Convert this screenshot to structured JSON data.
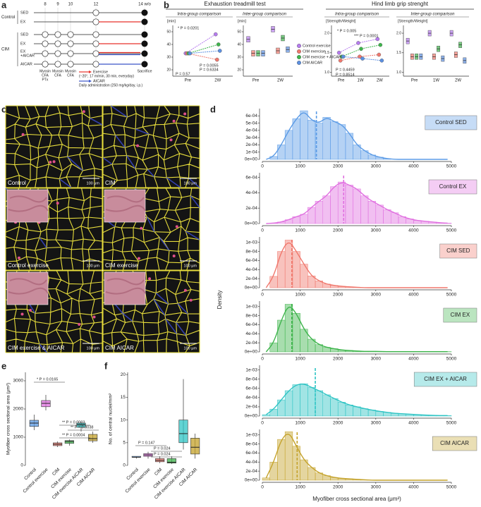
{
  "panel_letters": [
    "a",
    "b",
    "c",
    "d",
    "e",
    "f"
  ],
  "schematic": {
    "weeks": [
      "8",
      "9",
      "10",
      "12",
      "14 w/o"
    ],
    "groups": [
      {
        "name": "Control",
        "rows": [
          {
            "label": [
              "SED"
            ],
            "exercise": false,
            "aicar": false
          },
          {
            "label": [
              "EX"
            ],
            "exercise": true,
            "aicar": false
          }
        ]
      },
      {
        "name": "CIM",
        "rows": [
          {
            "label": [
              "SED"
            ],
            "exercise": false,
            "aicar": false
          },
          {
            "label": [
              "EX"
            ],
            "exercise": true,
            "aicar": false
          },
          {
            "label": [
              "EX",
              "+AICAR"
            ],
            "exercise": true,
            "aicar": true
          },
          {
            "label": [
              "AICAR"
            ],
            "exercise": false,
            "aicar": true
          }
        ]
      }
    ],
    "injections": [
      [
        "Myosin",
        "CFA",
        "PTx"
      ],
      [
        "Myosin",
        "CFA"
      ],
      [
        "Myosin",
        "CFA"
      ]
    ],
    "end": "Sacrifice",
    "exercise_color": "#e8322a",
    "aicar_color": "#3a55c8",
    "legend": [
      {
        "name": "Exercise",
        "note": "(−20°, 17 m/min, 30 min, everyday)"
      },
      {
        "name": "AICAR",
        "note": "Daily administration (250 mg/kg/day, i.p.)"
      }
    ]
  },
  "micrographs": [
    {
      "label": "Control",
      "scale": "100 μm",
      "inset": false
    },
    {
      "label": "CIM",
      "scale": "100 μm",
      "inset": false
    },
    {
      "label": "Control exercise",
      "scale": "100 μm",
      "inset": true
    },
    {
      "label": "CIM exercise",
      "scale": "100 μm",
      "inset": true
    },
    {
      "label": "CIM exercise & AICAR",
      "scale": "100 μm",
      "inset": true
    },
    {
      "label": "CIM AICAR",
      "scale": "100 μm",
      "inset": true
    }
  ],
  "b_legend": [
    {
      "name": "Control exercise",
      "color": "#b57bee"
    },
    {
      "name": "CIM exercise",
      "color": "#f0776c"
    },
    {
      "name": "CIM exercise + AICAR",
      "color": "#3db44b"
    },
    {
      "name": "CIM AICAR",
      "color": "#5b8fe0"
    }
  ],
  "d_axes": {
    "ylabel": "Density",
    "xlabel": "Myofiber cross sectional area (μm²)"
  },
  "chart_data": [
    {
      "type": "histogram",
      "label": "Control SED",
      "color": "#5b9be6",
      "bins": [
        0,
        200,
        400,
        600,
        800,
        1000,
        1200,
        1400,
        1600,
        1800,
        2000,
        2200,
        2400,
        2600,
        2800,
        3000,
        3200,
        3400,
        3600,
        3800,
        4000,
        4200,
        4400,
        4600,
        4800,
        5000
      ],
      "values": [
        0,
        4e-05,
        0.0002,
        0.0004,
        0.00056,
        0.00067,
        0.00054,
        0.0005,
        0.00058,
        0.00052,
        0.00048,
        0.00036,
        0.0002,
        0.00012,
        6e-05,
        3e-05,
        1e-05,
        0,
        0,
        0,
        0,
        0,
        0,
        0,
        0
      ],
      "mean": 1430,
      "xlim": [
        0,
        5000
      ],
      "xticks": [
        0,
        1000,
        2000,
        3000,
        4000,
        5000
      ],
      "ylim": [
        0,
        0.0007
      ],
      "yticks": [
        {
          "value": 0,
          "label": "0e+00"
        },
        {
          "value": 0.0001,
          "label": "1e-04"
        },
        {
          "value": 0.0002,
          "label": "2e-04"
        },
        {
          "value": 0.0003,
          "label": "3e-04"
        },
        {
          "value": 0.0004,
          "label": "4e-04"
        },
        {
          "value": 0.0005,
          "label": "5e-04"
        },
        {
          "value": 0.0006,
          "label": "6e-04"
        }
      ]
    },
    {
      "type": "histogram",
      "label": "Control EX",
      "color": "#e070e0",
      "bins": [
        0,
        200,
        400,
        600,
        800,
        1000,
        1200,
        1400,
        1600,
        1800,
        2000,
        2200,
        2400,
        2600,
        2800,
        3000,
        3200,
        3400,
        3600,
        3800,
        4000,
        4200,
        4400,
        4600,
        4800,
        5000
      ],
      "values": [
        0,
        5e-06,
        2e-05,
        5e-05,
        9e-05,
        0.00012,
        0.00021,
        0.00029,
        0.00036,
        0.00048,
        0.00054,
        0.0005,
        0.00045,
        0.00036,
        0.00029,
        0.00024,
        0.00018,
        0.00014,
        9e-05,
        6e-05,
        4e-05,
        3e-05,
        2e-05,
        1e-05,
        5e-06
      ],
      "mean": 2150,
      "xlim": [
        0,
        5000
      ],
      "xticks": [
        0,
        1000,
        2000,
        3000,
        4000,
        5000
      ],
      "ylim": [
        0,
        0.00066
      ],
      "yticks": [
        {
          "value": 0,
          "label": "0e+00"
        },
        {
          "value": 0.0002,
          "label": "2e-04"
        },
        {
          "value": 0.0004,
          "label": "4e-04"
        },
        {
          "value": 0.0006,
          "label": "6e-04"
        }
      ]
    },
    {
      "type": "histogram",
      "label": "CIM SED",
      "color": "#f0776c",
      "bins": [
        0,
        200,
        400,
        600,
        800,
        1000,
        1200,
        1400,
        1600,
        1800,
        2000,
        2200,
        2400,
        2600,
        2800,
        3000,
        3200,
        3400,
        3600,
        3800,
        4000,
        4200,
        4400,
        4600,
        4800,
        5000
      ],
      "values": [
        0,
        0.00025,
        0.0008,
        0.00105,
        0.0008,
        0.00052,
        0.00026,
        0.00015,
        8e-05,
        5e-05,
        3e-05,
        2e-05,
        1e-05,
        0,
        0,
        0,
        0,
        0,
        0,
        0,
        0,
        0,
        0,
        0,
        0
      ],
      "mean": 780,
      "xlim": [
        0,
        5000
      ],
      "xticks": [
        0,
        1000,
        2000,
        3000,
        4000,
        5000
      ],
      "ylim": [
        0,
        0.00112
      ],
      "yticks": [
        {
          "value": 0,
          "label": "0e+00"
        },
        {
          "value": 0.0002,
          "label": "2e-04"
        },
        {
          "value": 0.0004,
          "label": "4e-04"
        },
        {
          "value": 0.0006,
          "label": "6e-04"
        },
        {
          "value": 0.0008,
          "label": "8e-04"
        },
        {
          "value": 0.001,
          "label": "1e-03"
        }
      ]
    },
    {
      "type": "histogram",
      "label": "CIM EX",
      "color": "#3db44b",
      "bins": [
        0,
        200,
        400,
        600,
        800,
        1000,
        1200,
        1400,
        1600,
        1800,
        2000,
        2200,
        2400,
        2600,
        2800,
        3000,
        3200,
        3400,
        3600,
        3800,
        4000,
        4200,
        4400,
        4600,
        4800,
        5000
      ],
      "values": [
        0,
        0.0002,
        0.0007,
        0.00105,
        0.00085,
        0.0005,
        0.00028,
        0.00016,
        0.0001,
        7e-05,
        4e-05,
        3e-05,
        2e-05,
        1e-05,
        1e-05,
        1e-05,
        5e-06,
        5e-06,
        5e-06,
        5e-06,
        5e-06,
        5e-06,
        5e-06,
        5e-06,
        5e-06
      ],
      "mean": 780,
      "xlim": [
        0,
        5000
      ],
      "xticks": [
        0,
        1000,
        2000,
        3000,
        4000,
        5000
      ],
      "ylim": [
        0,
        0.00112
      ],
      "yticks": [
        {
          "value": 0,
          "label": "0e+00"
        },
        {
          "value": 0.0002,
          "label": "2e-04"
        },
        {
          "value": 0.0004,
          "label": "4e-04"
        },
        {
          "value": 0.0006,
          "label": "6e-04"
        },
        {
          "value": 0.0008,
          "label": "8e-04"
        },
        {
          "value": 0.001,
          "label": "1e-03"
        }
      ]
    },
    {
      "type": "histogram",
      "label": "CIM EX + AICAR",
      "color": "#2ec4c4",
      "bins": [
        0,
        200,
        400,
        600,
        800,
        1000,
        1200,
        1400,
        1600,
        1800,
        2000,
        2200,
        2400,
        2600,
        2800,
        3000,
        3200,
        3400,
        3600,
        3800,
        4000,
        4200,
        4400,
        4600,
        4800,
        5000
      ],
      "values": [
        3e-05,
        0.00015,
        0.00035,
        0.00055,
        0.00068,
        0.0007,
        0.00062,
        0.00055,
        0.00046,
        0.00038,
        0.0003,
        0.00024,
        0.0002,
        0.00016,
        0.00013,
        0.0001,
        8e-05,
        6e-05,
        5e-05,
        4e-05,
        3e-05,
        2e-05,
        1.5e-05,
        1e-05,
        1e-05
      ],
      "mean": 1400,
      "xlim": [
        0,
        5000
      ],
      "xticks": [
        0,
        1000,
        2000,
        3000,
        4000,
        5000
      ],
      "ylim": [
        0,
        0.0011
      ],
      "yticks": [
        {
          "value": 0,
          "label": "0e+00"
        },
        {
          "value": 0.0002,
          "label": "2e-04"
        },
        {
          "value": 0.0004,
          "label": "4e-04"
        },
        {
          "value": 0.0006,
          "label": "6e-04"
        },
        {
          "value": 0.0008,
          "label": "8e-04"
        },
        {
          "value": 0.001,
          "label": "1e-03"
        }
      ]
    },
    {
      "type": "histogram",
      "label": "CIM AICAR",
      "color": "#c4a22a",
      "bins": [
        0,
        200,
        400,
        600,
        800,
        1000,
        1200,
        1400,
        1600,
        1800,
        2000,
        2200,
        2400,
        2600,
        2800,
        3000,
        3200,
        3400,
        3600,
        3800,
        4000,
        4200,
        4400,
        4600,
        4800,
        5000
      ],
      "values": [
        5e-05,
        0.0004,
        0.0009,
        0.00107,
        0.00075,
        0.00045,
        0.00028,
        0.00016,
        0.0001,
        6e-05,
        4e-05,
        3e-05,
        2e-05,
        1e-05,
        0,
        0,
        0,
        0,
        0,
        0,
        0,
        0,
        0,
        0,
        0
      ],
      "mean": 920,
      "xlim": [
        0,
        5000
      ],
      "xticks": [
        0,
        1000,
        2000,
        3000,
        4000,
        5000
      ],
      "ylim": [
        0,
        0.00112
      ],
      "yticks": [
        {
          "value": 0,
          "label": "0e+00"
        },
        {
          "value": 0.0002,
          "label": "2e-04"
        },
        {
          "value": 0.0004,
          "label": "4e-04"
        },
        {
          "value": 0.0006,
          "label": "6e-04"
        },
        {
          "value": 0.0008,
          "label": "8e-04"
        },
        {
          "value": 0.001,
          "label": "1e-03"
        }
      ]
    },
    {
      "type": "box",
      "ylabel": "Myofiber cross sectional area (μm²)",
      "categories": [
        "Control",
        "Control exercise",
        "CIM",
        "CIM exercise",
        "CIM exercise AICAR",
        "CIM AICAR"
      ],
      "colors": [
        "#5b9be6",
        "#e070e0",
        "#f0776c",
        "#3db44b",
        "#2ec4c4",
        "#c4a22a"
      ],
      "boxes": [
        {
          "min": 1250,
          "q1": 1380,
          "median": 1500,
          "q3": 1600,
          "max": 1800
        },
        {
          "min": 1950,
          "q1": 2080,
          "median": 2200,
          "q3": 2300,
          "max": 2500
        },
        {
          "min": 650,
          "q1": 700,
          "median": 750,
          "q3": 800,
          "max": 850
        },
        {
          "min": 700,
          "q1": 780,
          "median": 850,
          "q3": 880,
          "max": 920
        },
        {
          "min": 1200,
          "q1": 1350,
          "median": 1450,
          "q3": 1500,
          "max": 1550
        },
        {
          "min": 800,
          "q1": 870,
          "median": 950,
          "q3": 1100,
          "max": 1200
        }
      ],
      "ylim": [
        0,
        3300
      ],
      "yticks": [
        0,
        1000,
        2000,
        3000
      ],
      "annotations": [
        "* P = 0.0165",
        "** P = 0.0003",
        "** P = 0.0038",
        "** P = 0.0004"
      ]
    },
    {
      "type": "box",
      "ylabel": "No. of central nuclei/mm²",
      "categories": [
        "Control",
        "Control exercise",
        "CIM",
        "CIM exercise",
        "CIM exercise AICAR",
        "CIM AICAR"
      ],
      "colors": [
        "#5b9be6",
        "#e070e0",
        "#f0776c",
        "#3db44b",
        "#2ec4c4",
        "#c4a22a"
      ],
      "boxes": [
        {
          "min": 1.5,
          "q1": 1.8,
          "median": 1.8,
          "q3": 2.0,
          "max": 2.0
        },
        {
          "min": 1.5,
          "q1": 2.0,
          "median": 2.3,
          "q3": 2.6,
          "max": 3.0
        },
        {
          "min": 0.5,
          "q1": 0.8,
          "median": 1.1,
          "q3": 1.5,
          "max": 2.0
        },
        {
          "min": 0.3,
          "q1": 0.5,
          "median": 0.7,
          "q3": 1.5,
          "max": 2.0
        },
        {
          "min": 3.5,
          "q1": 5.0,
          "median": 7.0,
          "q3": 10.0,
          "max": 19.0
        },
        {
          "min": 1.5,
          "q1": 2.5,
          "median": 4.0,
          "q3": 6.0,
          "max": 7.0
        }
      ],
      "ylim": [
        0,
        20.5
      ],
      "yticks": [
        0,
        5,
        10,
        15,
        20
      ],
      "annotations": [
        "P = 0.147",
        "P = 0.024",
        "P = 0.024"
      ]
    },
    {
      "type": "line",
      "title": "Exhaustion treadmill test",
      "subtitle": "Intra-group comparison",
      "ylabel": "[min]",
      "categories": [
        "Pre",
        "2W"
      ],
      "series": [
        {
          "values": [
            33,
            48
          ]
        },
        {
          "values": [
            33,
            28
          ]
        },
        {
          "values": [
            33,
            40
          ]
        },
        {
          "values": [
            33,
            35
          ]
        }
      ],
      "ylim": [
        15,
        55
      ],
      "yticks": [
        20,
        30,
        40,
        50
      ],
      "annotations": [
        "* P = 0.0201",
        "P = 0.0055",
        "P = 0.6334",
        "P = 0.57"
      ]
    },
    {
      "type": "groupbox",
      "subtitle": "Inter-group comparison",
      "ylabel": "[min]",
      "categories": [
        "Pre",
        "2W"
      ],
      "series": [
        {
          "values": [
            44,
            52
          ]
        },
        {
          "values": [
            33,
            35
          ]
        },
        {
          "values": [
            33,
            45
          ]
        },
        {
          "values": [
            33,
            36
          ]
        }
      ],
      "ylim": [
        15,
        55
      ],
      "yticks": [
        20,
        30,
        40,
        50
      ],
      "annotations": []
    },
    {
      "type": "line",
      "title": "Hind limb grip strenght",
      "subtitle": "Intra-group comparison",
      "ylabel": "[Strength/Weight]",
      "categories": [
        "Pre",
        "1W",
        "2W"
      ],
      "series": [
        {
          "values": [
            1.5,
            1.75,
            1.85
          ]
        },
        {
          "values": [
            1.3,
            1.4,
            1.45
          ]
        },
        {
          "values": [
            1.4,
            1.6,
            1.7
          ]
        },
        {
          "values": [
            1.4,
            1.35,
            1.3
          ]
        }
      ],
      "ylim": [
        0.9,
        2.2
      ],
      "yticks": [
        {
          "value": 1,
          "label": "1.0"
        },
        {
          "value": 1.5,
          "label": "1.5"
        },
        {
          "value": 2,
          "label": "2.0"
        }
      ],
      "annotations": [
        "* P = 0.005",
        "*** P = 0.0001",
        "P = 0.4459",
        "P = 0.8514"
      ]
    },
    {
      "type": "groupbox",
      "subtitle": "Inter-group comparison",
      "ylabel": "[Strength/Weight]",
      "categories": [
        "Pre",
        "1W",
        "2W"
      ],
      "series": [
        {
          "values": [
            1.8,
            2.0,
            2.0
          ]
        },
        {
          "values": [
            1.4,
            1.4,
            1.45
          ]
        },
        {
          "values": [
            1.4,
            1.6,
            1.7
          ]
        },
        {
          "values": [
            1.4,
            1.35,
            1.3
          ]
        }
      ],
      "ylim": [
        0.9,
        2.2
      ],
      "yticks": [
        {
          "value": 1,
          "label": "1.0"
        },
        {
          "value": 1.5,
          "label": "1.5"
        },
        {
          "value": 2,
          "label": "2.0"
        }
      ],
      "annotations": []
    }
  ]
}
